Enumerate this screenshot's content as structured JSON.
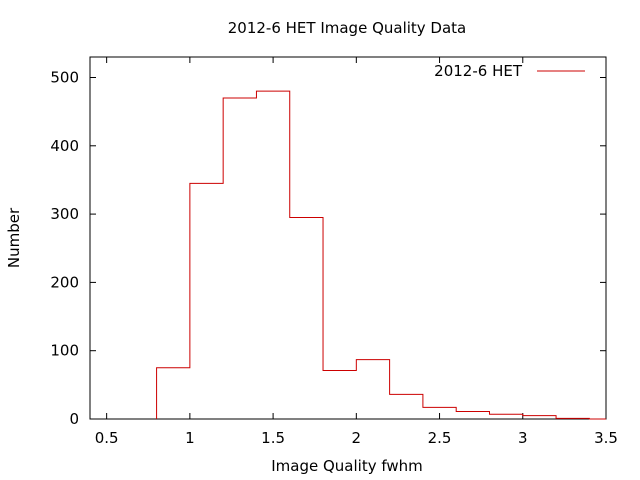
{
  "chart_data": {
    "type": "bar",
    "title": "2012-6 HET Image Quality Data",
    "xlabel": "Image Quality fwhm",
    "ylabel": "Number",
    "xlim": [
      0.4,
      3.5
    ],
    "ylim": [
      0,
      530
    ],
    "xticks": [
      "0.5",
      "1",
      "1.5",
      "2",
      "2.5",
      "3",
      "3.5"
    ],
    "xtick_values": [
      0.5,
      1,
      1.5,
      2,
      2.5,
      3,
      3.5
    ],
    "yticks": [
      "0",
      "100",
      "200",
      "300",
      "400",
      "500"
    ],
    "ytick_values": [
      0,
      100,
      200,
      300,
      400,
      500
    ],
    "bin_edges": [
      0.8,
      1.0,
      1.2,
      1.4,
      1.6,
      1.8,
      2.0,
      2.2,
      2.4,
      2.6,
      2.8,
      3.0,
      3.2,
      3.4,
      3.5
    ],
    "series": [
      {
        "name": "2012-6 HET",
        "color": "#cc0000",
        "values": [
          75,
          345,
          470,
          480,
          295,
          71,
          87,
          36,
          17,
          11,
          7,
          5,
          1,
          0
        ]
      }
    ],
    "grid": false,
    "legend": "top-right"
  }
}
